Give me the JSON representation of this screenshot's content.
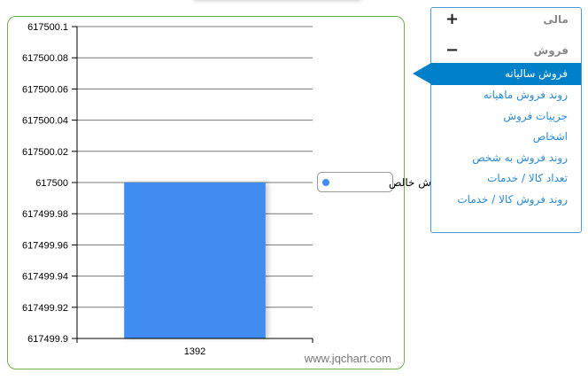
{
  "menu": {
    "groups": [
      {
        "label": "مالی",
        "sign": "+"
      },
      {
        "label": "فروش",
        "sign": "−"
      }
    ],
    "items": [
      "فروش سالیانه",
      "روند فروش ماهیانه",
      "جزییات فروش",
      "اشخاص",
      "روند فروش به شخص",
      "تعداد کالا / خدمات",
      "روند فروش کالا / خدمات"
    ],
    "selected_index": 0
  },
  "chart_data": {
    "type": "bar",
    "categories": [
      "1392"
    ],
    "series": [
      {
        "name": "فروش خالص",
        "values": [
          617500
        ],
        "color": "#418cf0"
      }
    ],
    "ylim": [
      617499.9,
      617500.1
    ],
    "yticks": [
      "617500.1",
      "617500.08",
      "617500.06",
      "617500.04",
      "617500.02",
      "617500",
      "617499.98",
      "617499.96",
      "617499.94",
      "617499.92",
      "617499.9"
    ],
    "grid": true,
    "legend": "right",
    "watermark": "www.jqchart.com"
  }
}
